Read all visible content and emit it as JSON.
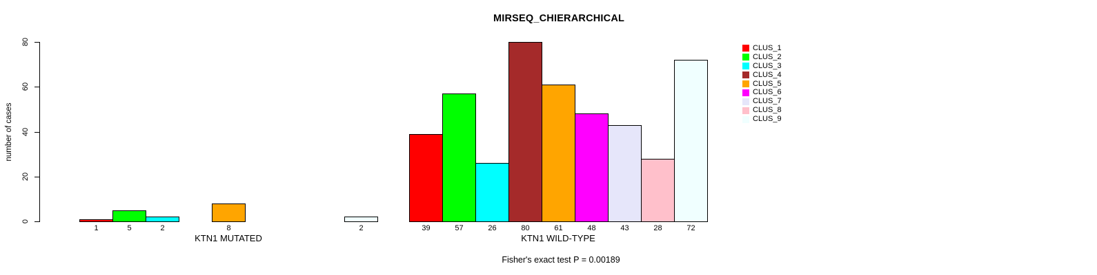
{
  "title": "MIRSEQ_CHIERARCHICAL",
  "footer": "Fisher's exact test P = 0.00189",
  "chart_data": {
    "type": "bar",
    "title": "MIRSEQ_CHIERARCHICAL",
    "ylabel": "number of cases",
    "xlabel": "",
    "ylim": [
      0,
      80
    ],
    "yticks": [
      0,
      20,
      40,
      60,
      80
    ],
    "grid": false,
    "legend_position": "right",
    "bar_border_color": "#000000",
    "categories": [
      "CLUS_1",
      "CLUS_2",
      "CLUS_3",
      "CLUS_4",
      "CLUS_5",
      "CLUS_6",
      "CLUS_7",
      "CLUS_8",
      "CLUS_9"
    ],
    "colors": [
      "#FF0000",
      "#00FF00",
      "#00FFFF",
      "#A52A2A",
      "#FFA500",
      "#FF00FF",
      "#E6E6FA",
      "#FFC0CB",
      "#F0FFFF"
    ],
    "series": [
      {
        "name": "KTN1 MUTATED",
        "values": [
          1,
          5,
          2,
          0,
          8,
          0,
          0,
          0,
          2
        ]
      },
      {
        "name": "KTN1 WILD-TYPE",
        "values": [
          39,
          57,
          26,
          80,
          61,
          48,
          43,
          28,
          72
        ]
      }
    ],
    "annotation": "Fisher's exact test P = 0.00189"
  }
}
